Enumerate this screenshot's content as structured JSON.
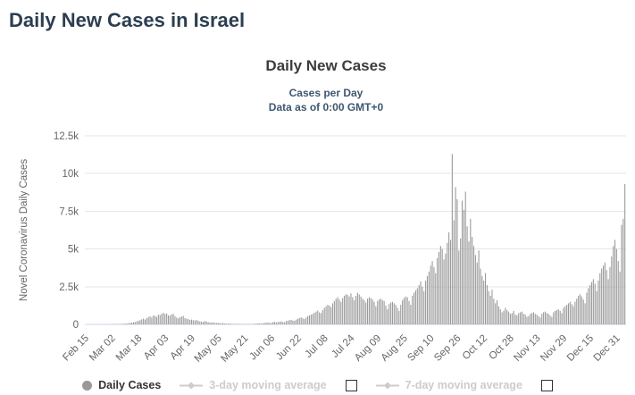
{
  "page": {
    "title": "Daily New Cases in Israel"
  },
  "chart": {
    "title": "Daily New Cases",
    "subtitle_line1": "Cases per Day",
    "subtitle_line2": "Data as of 0:00 GMT+0",
    "ylabel": "Novel Coronavirus Daily Cases"
  },
  "legend": {
    "daily_cases": "Daily Cases",
    "avg3": "3-day moving average",
    "avg7": "7-day moving average"
  },
  "colors": {
    "page_title": "#2c3e50",
    "chart_title": "#3c3c3c",
    "subtitle": "#3e576f",
    "bar": "#9a9a9a",
    "grid": "#e6e6e6",
    "axis_line": "#ccd6eb",
    "tick_text": "#666666",
    "legend_active": "#333333",
    "legend_disabled": "#cccccc",
    "marker_gray": "#999999"
  },
  "chart_data": {
    "type": "bar",
    "title": "Daily New Cases",
    "subtitle": "Cases per Day — Data as of 0:00 GMT+0",
    "xlabel": "",
    "ylabel": "Novel Coronavirus Daily Cases",
    "ylim": [
      0,
      12500
    ],
    "yticks": [
      "0",
      "2.5k",
      "5k",
      "7.5k",
      "10k",
      "12.5k"
    ],
    "ytick_values": [
      0,
      2500,
      5000,
      7500,
      10000,
      12500
    ],
    "grid": true,
    "legend_position": "bottom",
    "start_date": "Feb 15",
    "xtick_interval_days": 16,
    "xticklabels": [
      "Feb 15",
      "Mar 02",
      "Mar 18",
      "Apr 03",
      "Apr 19",
      "May 05",
      "May 21",
      "Jun 06",
      "Jun 22",
      "Jul 08",
      "Jul 24",
      "Aug 09",
      "Aug 25",
      "Sep 10",
      "Sep 26",
      "Oct 12",
      "Oct 28",
      "Nov 13",
      "Nov 29",
      "Dec 15",
      "Dec 31"
    ],
    "series_name": "Daily Cases",
    "values": [
      0,
      0,
      0,
      0,
      0,
      0,
      1,
      0,
      2,
      1,
      0,
      3,
      2,
      5,
      4,
      5,
      8,
      10,
      12,
      15,
      20,
      25,
      30,
      40,
      50,
      60,
      80,
      100,
      120,
      140,
      160,
      200,
      240,
      280,
      330,
      380,
      320,
      420,
      480,
      540,
      450,
      600,
      560,
      500,
      650,
      620,
      700,
      765,
      690,
      720,
      600,
      580,
      660,
      700,
      550,
      450,
      400,
      480,
      520,
      560,
      420,
      380,
      350,
      300,
      320,
      280,
      260,
      300,
      240,
      200,
      180,
      160,
      220,
      190,
      150,
      130,
      120,
      140,
      100,
      90,
      110,
      80,
      70,
      90,
      60,
      50,
      45,
      55,
      40,
      35,
      30,
      38,
      25,
      20,
      28,
      18,
      15,
      12,
      20,
      25,
      18,
      30,
      35,
      45,
      60,
      70,
      55,
      80,
      95,
      110,
      130,
      100,
      90,
      150,
      170,
      140,
      160,
      180,
      200,
      160,
      140,
      220,
      250,
      280,
      300,
      260,
      240,
      320,
      380,
      420,
      460,
      400,
      350,
      450,
      550,
      600,
      650,
      700,
      780,
      850,
      920,
      800,
      750,
      950,
      1100,
      1200,
      1300,
      1250,
      1150,
      1400,
      1550,
      1700,
      1800,
      1650,
      1500,
      1750,
      1900,
      2000,
      1950,
      1850,
      2050,
      1800,
      1600,
      1900,
      2100,
      1980,
      1850,
      1700,
      1600,
      1450,
      1700,
      1800,
      1750,
      1650,
      1500,
      1200,
      1550,
      1650,
      1700,
      1600,
      1550,
      1250,
      1000,
      1350,
      1450,
      1500,
      1400,
      1300,
      1100,
      900,
      1300,
      1600,
      1750,
      1850,
      1800,
      1550,
      1300,
      1900,
      2100,
      2250,
      2400,
      2600,
      2850,
      2500,
      2200,
      2900,
      3200,
      3500,
      3900,
      4200,
      3800,
      3400,
      4400,
      4800,
      5200,
      5000,
      4300,
      4700,
      5400,
      6100,
      5600,
      11300,
      6900,
      9100,
      8300,
      4900,
      5700,
      8200,
      7600,
      8800,
      6500,
      5500,
      7000,
      5800,
      5200,
      4600,
      4100,
      4900,
      3700,
      3200,
      2900,
      3400,
      2600,
      2200,
      1900,
      2300,
      1700,
      1400,
      1600,
      1200,
      1000,
      800,
      900,
      1100,
      950,
      850,
      700,
      750,
      900,
      650,
      600,
      750,
      800,
      850,
      700,
      650,
      500,
      550,
      700,
      750,
      800,
      700,
      650,
      550,
      450,
      700,
      800,
      850,
      750,
      700,
      600,
      500,
      800,
      900,
      950,
      1000,
      900,
      750,
      1100,
      1200,
      1300,
      1400,
      1500,
      1350,
      1200,
      1500,
      1700,
      1900,
      2000,
      1850,
      1650,
      1400,
      2100,
      2400,
      2600,
      2800,
      3000,
      2700,
      2200,
      2900,
      3400,
      3700,
      3900,
      4100,
      3600,
      3000,
      3800,
      4500,
      5200,
      5600,
      5000,
      4200,
      3500,
      6600,
      7000,
      9300
    ]
  }
}
